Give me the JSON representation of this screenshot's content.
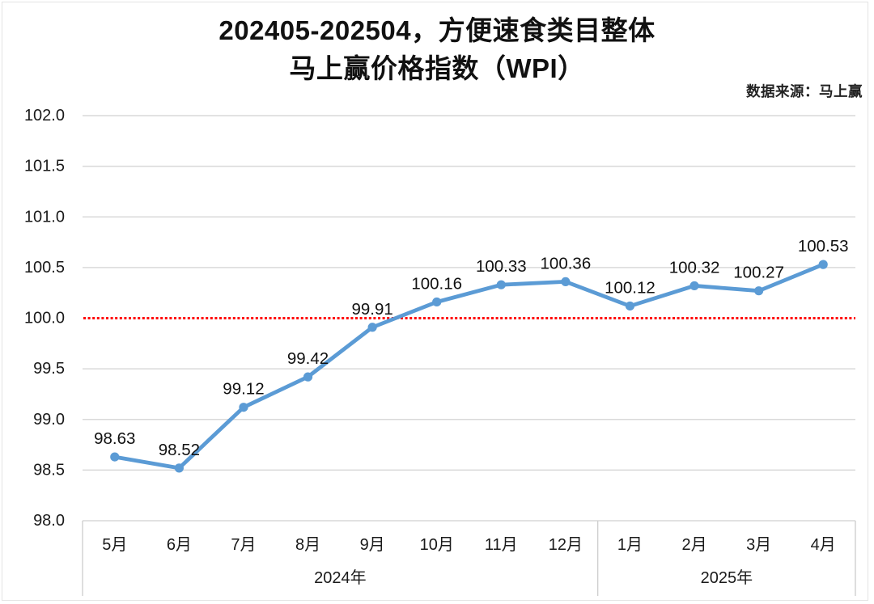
{
  "header": {
    "title_line1": "202405-202504，方便速食类目整体",
    "title_line2": "马上赢价格指数（WPI）",
    "source_note": "数据来源：马上赢"
  },
  "chart_data": {
    "type": "line",
    "title": "202405-202504，方便速食类目整体 马上赢价格指数（WPI）",
    "categories": [
      "5月",
      "6月",
      "7月",
      "8月",
      "9月",
      "10月",
      "11月",
      "12月",
      "1月",
      "2月",
      "3月",
      "4月"
    ],
    "series": [
      {
        "name": "马上赢价格指数(WPI)",
        "values": [
          98.63,
          98.52,
          99.12,
          99.42,
          99.91,
          100.16,
          100.33,
          100.36,
          100.12,
          100.32,
          100.27,
          100.53
        ],
        "data_labels": [
          "98.63",
          "98.52",
          "99.12",
          "99.42",
          "99.91",
          "100.16",
          "100.33",
          "100.36",
          "100.12",
          "100.32",
          "100.27",
          "100.53"
        ]
      }
    ],
    "year_groups": [
      {
        "label": "2024年",
        "span": 8
      },
      {
        "label": "2025年",
        "span": 4
      }
    ],
    "ylim": [
      98.0,
      102.0
    ],
    "ytick_step": 0.5,
    "yticks": [
      "98.0",
      "98.5",
      "99.0",
      "99.5",
      "100.0",
      "100.5",
      "101.0",
      "101.5",
      "102.0"
    ],
    "reference_line": {
      "value": 100.0,
      "style": "dotted"
    },
    "grid": true,
    "legend": "none",
    "colors": {
      "series_line": "#5b9bd5",
      "reference_line": "#ff0000",
      "gridline": "#d9d9d9",
      "axis_border": "#cfcfcf",
      "text": "#1a1a1a"
    }
  }
}
